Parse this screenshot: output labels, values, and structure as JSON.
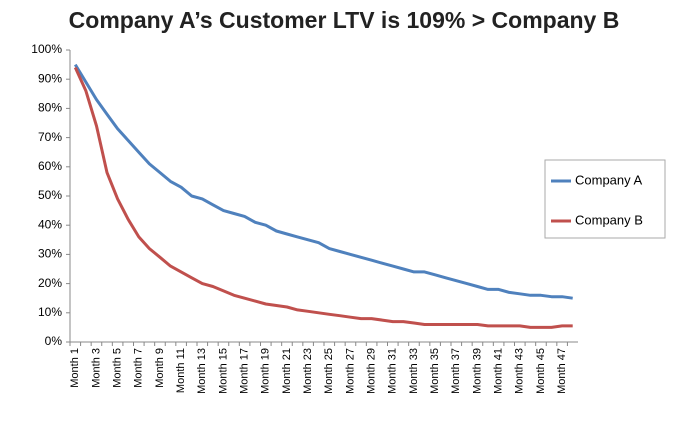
{
  "chart_data": {
    "type": "line",
    "title": "Company A’s Customer LTV is 109% > Company B",
    "categories": [
      "Month 1",
      null,
      "Month 3",
      null,
      "Month 5",
      null,
      "Month 7",
      null,
      "Month 9",
      null,
      "Month 11",
      null,
      "Month 13",
      null,
      "Month 15",
      null,
      "Month 17",
      null,
      "Month 19",
      null,
      "Month 21",
      null,
      "Month 23",
      null,
      "Month 25",
      null,
      "Month 27",
      null,
      "Month 29",
      null,
      "Month 31",
      null,
      "Month 33",
      null,
      "Month 35",
      null,
      "Month 37",
      null,
      "Month 39",
      null,
      "Month 41",
      null,
      "Month 43",
      null,
      "Month 45",
      null,
      "Month 47",
      null
    ],
    "series": [
      {
        "name": "Company A",
        "color": "#4f81bd",
        "values": [
          95,
          89,
          83,
          78,
          73,
          69,
          65,
          61,
          58,
          55,
          53,
          50,
          49,
          47,
          45,
          44,
          43,
          41,
          40,
          38,
          37,
          36,
          35,
          34,
          32,
          31,
          30,
          29,
          28,
          27,
          26,
          25,
          24,
          24,
          23,
          22,
          21,
          20,
          19,
          18,
          18,
          17,
          16.5,
          16,
          16,
          15.5,
          15.5,
          15
        ]
      },
      {
        "name": "Company B",
        "color": "#c0504d",
        "values": [
          94,
          86,
          74,
          58,
          49,
          42,
          36,
          32,
          29,
          26,
          24,
          22,
          20,
          19,
          17.5,
          16,
          15,
          14,
          13,
          12.5,
          12,
          11,
          10.5,
          10,
          9.5,
          9,
          8.5,
          8,
          8,
          7.5,
          7,
          7,
          6.5,
          6,
          6,
          6,
          6,
          6,
          6,
          5.5,
          5.5,
          5.5,
          5.5,
          5,
          5,
          5,
          5.5,
          5.5
        ]
      }
    ],
    "ylim": [
      0,
      100
    ],
    "yticks": [
      {
        "value": 0,
        "label": "0%"
      },
      {
        "value": 10,
        "label": "10%"
      },
      {
        "value": 20,
        "label": "20%"
      },
      {
        "value": 30,
        "label": "30%"
      },
      {
        "value": 40,
        "label": "40%"
      },
      {
        "value": 50,
        "label": "50%"
      },
      {
        "value": 60,
        "label": "60%"
      },
      {
        "value": 70,
        "label": "70%"
      },
      {
        "value": 80,
        "label": "80%"
      },
      {
        "value": 90,
        "label": "90%"
      },
      {
        "value": 100,
        "label": "100%"
      }
    ],
    "grid": false,
    "legend": "right"
  }
}
